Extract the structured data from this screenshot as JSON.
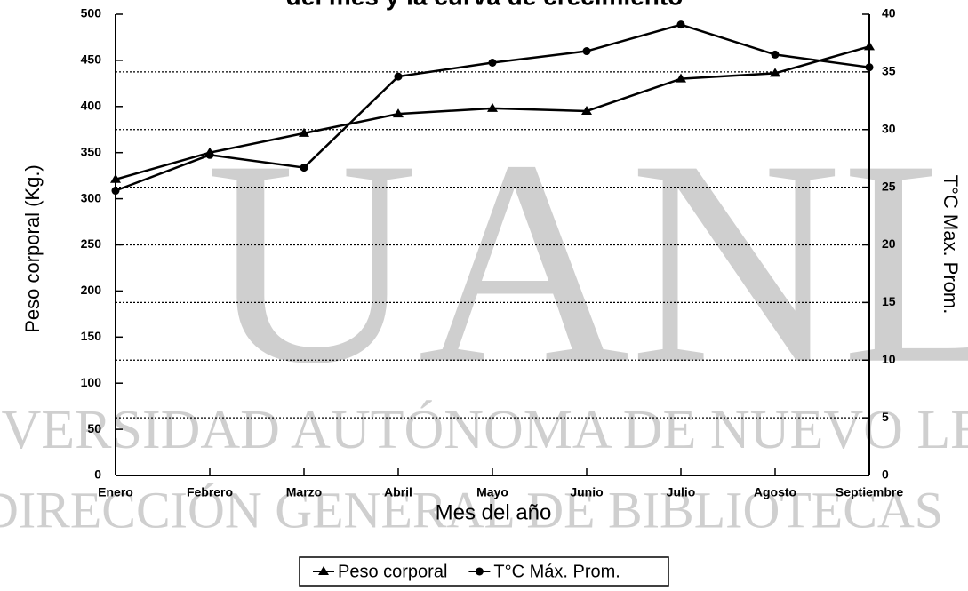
{
  "chart_data": {
    "type": "line",
    "title": "del mes y la curva de crecimiento",
    "x_label": "Mes del año",
    "y_label": "Peso corporal (Kg.)",
    "y2_label": "T°C Max. Prom.",
    "categories": [
      "Enero",
      "Febrero",
      "Marzo",
      "Abril",
      "Mayo",
      "Junio",
      "Julio",
      "Agosto",
      "Septiembre"
    ],
    "series": [
      {
        "name": "Peso corporal",
        "color": "#000000",
        "marker": "triangle",
        "values": [
          321,
          350,
          371,
          392,
          398,
          395,
          430,
          436,
          465
        ]
      },
      {
        "name": "T°C Máx. Prom.",
        "color": "#000000",
        "marker": "circle",
        "axis": "y2",
        "values": [
          24.7,
          27.8,
          26.7,
          34.6,
          35.8,
          36.8,
          39.1,
          36.5,
          35.4
        ]
      }
    ],
    "ylim": [
      0,
      500
    ],
    "yticks": [
      0,
      50,
      100,
      150,
      200,
      250,
      300,
      350,
      400,
      450,
      500
    ],
    "y2lim": [
      0,
      40
    ],
    "y2ticks": [
      0,
      5,
      10,
      15,
      20,
      25,
      30,
      35,
      40
    ],
    "grid": true,
    "grid_axis": "y2",
    "legend": "bottom"
  },
  "watermark": [
    "UANL",
    "UNIVERSIDAD AUTÓNOMA DE NUEVO LEÓN",
    "DIRECCIÓN GENERAL DE BIBLIOTECAS"
  ]
}
